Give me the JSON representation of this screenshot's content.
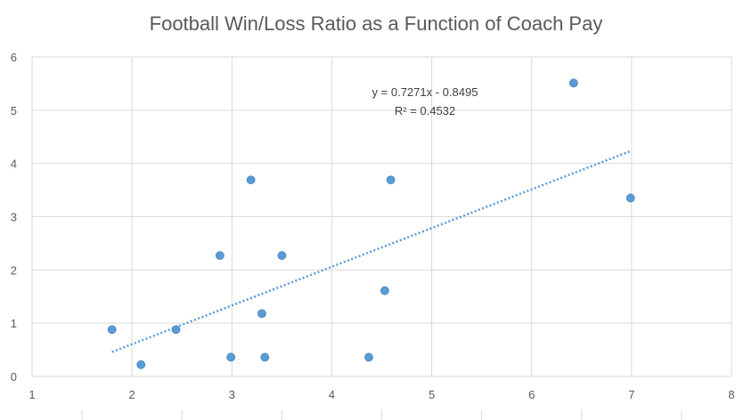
{
  "chart_data": {
    "type": "scatter",
    "title": "Football Win/Loss Ratio as a Function of Coach Pay",
    "xlabel": "",
    "ylabel": "",
    "xlim": [
      1,
      8
    ],
    "ylim": [
      0,
      6
    ],
    "xticks": [
      "1",
      "2",
      "3",
      "4",
      "5",
      "6",
      "7",
      "8"
    ],
    "yticks": [
      "0",
      "1",
      "2",
      "3",
      "4",
      "5",
      "6"
    ],
    "grid": true,
    "series": [
      {
        "color": "#5B9BD5",
        "points": [
          {
            "x": 1.8,
            "y": 0.88
          },
          {
            "x": 2.09,
            "y": 0.22
          },
          {
            "x": 2.44,
            "y": 0.88
          },
          {
            "x": 2.88,
            "y": 2.27
          },
          {
            "x": 2.99,
            "y": 0.36
          },
          {
            "x": 3.19,
            "y": 3.69
          },
          {
            "x": 3.3,
            "y": 1.18
          },
          {
            "x": 3.33,
            "y": 0.36
          },
          {
            "x": 3.5,
            "y": 2.27
          },
          {
            "x": 4.37,
            "y": 0.36
          },
          {
            "x": 4.53,
            "y": 1.61
          },
          {
            "x": 4.59,
            "y": 3.69
          },
          {
            "x": 6.42,
            "y": 5.51
          },
          {
            "x": 6.99,
            "y": 3.35
          }
        ]
      }
    ],
    "trendline": {
      "style": "dotted",
      "color": "#5B9BD5",
      "slope": 0.7271,
      "intercept": -0.8495,
      "x_range": [
        1.8,
        6.99
      ],
      "equation_text": "y = 0.7271x - 0.8495",
      "r2_text": "R² = 0.4532"
    },
    "colors": {
      "grid": "#D9D9D9",
      "text": "#595959"
    }
  }
}
